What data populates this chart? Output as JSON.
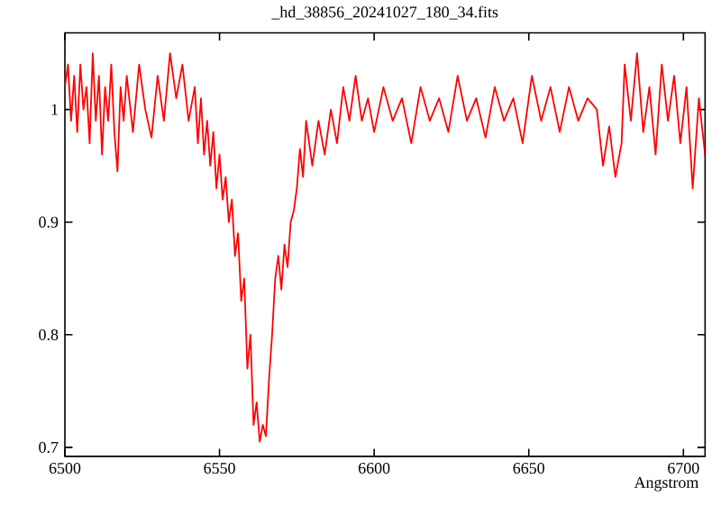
{
  "chart_data": {
    "type": "line",
    "title": "_hd_38856_20241027_180_34.fits",
    "xlabel": "Angstrom",
    "xlim": [
      6500,
      6707
    ],
    "ylim": [
      0.692,
      1.068
    ],
    "xticks": [
      6500,
      6550,
      6600,
      6650,
      6700
    ],
    "yticks": [
      0.7,
      0.8,
      0.9,
      1
    ],
    "grid": false,
    "marker": "none",
    "line_style": "solid",
    "series": [
      {
        "color": "#ff0000",
        "x": [
          6500,
          6501,
          6502,
          6503,
          6504,
          6505,
          6506,
          6507,
          6508,
          6509,
          6510,
          6511,
          6512,
          6513,
          6514,
          6515,
          6516,
          6517,
          6518,
          6519,
          6520,
          6522,
          6524,
          6526,
          6528,
          6530,
          6532,
          6534,
          6536,
          6538,
          6540,
          6542,
          6543,
          6544,
          6545,
          6546,
          6547,
          6548,
          6549,
          6550,
          6551,
          6552,
          6553,
          6554,
          6555,
          6556,
          6557,
          6558,
          6559,
          6560,
          6561,
          6562,
          6563,
          6564,
          6565,
          6566,
          6567,
          6568,
          6569,
          6570,
          6571,
          6572,
          6573,
          6574,
          6575,
          6576,
          6577,
          6578,
          6580,
          6582,
          6584,
          6586,
          6588,
          6590,
          6592,
          6594,
          6596,
          6598,
          6600,
          6603,
          6606,
          6609,
          6612,
          6615,
          6618,
          6621,
          6624,
          6627,
          6630,
          6633,
          6636,
          6639,
          6642,
          6645,
          6648,
          6651,
          6654,
          6657,
          6660,
          6663,
          6666,
          6669,
          6672,
          6674,
          6676,
          6678,
          6680,
          6681,
          6683,
          6685,
          6687,
          6689,
          6691,
          6693,
          6695,
          6697,
          6699,
          6701,
          6703,
          6705,
          6707
        ],
        "values": [
          1.02,
          1.04,
          0.99,
          1.03,
          0.98,
          1.04,
          1.0,
          1.02,
          0.97,
          1.05,
          0.99,
          1.03,
          0.96,
          1.02,
          0.99,
          1.04,
          0.98,
          0.945,
          1.02,
          0.99,
          1.03,
          0.98,
          1.04,
          1.0,
          0.975,
          1.03,
          0.99,
          1.05,
          1.01,
          1.04,
          0.99,
          1.02,
          0.97,
          1.01,
          0.96,
          0.99,
          0.95,
          0.98,
          0.93,
          0.96,
          0.92,
          0.94,
          0.9,
          0.92,
          0.87,
          0.89,
          0.83,
          0.85,
          0.77,
          0.8,
          0.72,
          0.74,
          0.705,
          0.72,
          0.71,
          0.76,
          0.8,
          0.85,
          0.87,
          0.84,
          0.88,
          0.86,
          0.9,
          0.91,
          0.93,
          0.965,
          0.94,
          0.99,
          0.95,
          0.99,
          0.96,
          1.0,
          0.97,
          1.02,
          0.99,
          1.03,
          0.99,
          1.01,
          0.98,
          1.02,
          0.99,
          1.01,
          0.97,
          1.02,
          0.99,
          1.01,
          0.98,
          1.03,
          0.99,
          1.01,
          0.975,
          1.02,
          0.99,
          1.01,
          0.97,
          1.03,
          0.99,
          1.02,
          0.98,
          1.02,
          0.99,
          1.01,
          1.0,
          0.95,
          0.985,
          0.94,
          0.97,
          1.04,
          0.99,
          1.05,
          0.98,
          1.02,
          0.96,
          1.04,
          0.99,
          1.03,
          0.97,
          1.02,
          0.93,
          1.01,
          0.96
        ]
      }
    ]
  }
}
